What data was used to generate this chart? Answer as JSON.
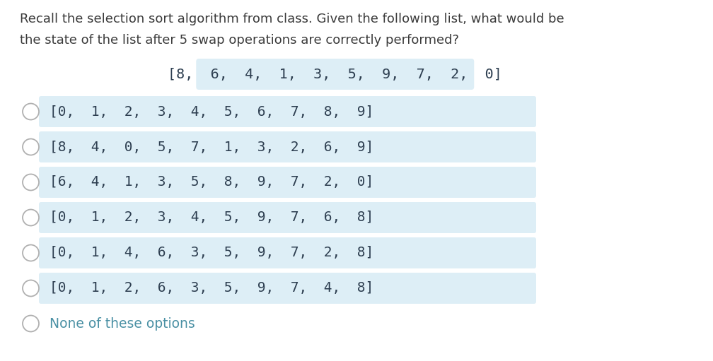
{
  "background_color": "#ffffff",
  "question_text_line1": "Recall the selection sort algorithm from class. Given the following list, what would be",
  "question_text_line2": "the state of the list after 5 swap operations are correctly performed?",
  "given_list": "[8,  6,  4,  1,  3,  5,  9,  7,  2,  0]",
  "options": [
    "[0,  1,  2,  3,  4,  5,  6,  7,  8,  9]",
    "[8,  4,  0,  5,  7,  1,  3,  2,  6,  9]",
    "[6,  4,  1,  3,  5,  8,  9,  7,  2,  0]",
    "[0,  1,  2,  3,  4,  5,  9,  7,  6,  8]",
    "[0,  1,  4,  6,  3,  5,  9,  7,  2,  8]",
    "[0,  1,  2,  6,  3,  5,  9,  7,  4,  8]",
    "None of these options"
  ],
  "option_bg_color": "#ddeef6",
  "question_font_color": "#3a3a3a",
  "mono_font_color": "#2d3e50",
  "none_font_color": "#4a90a4",
  "question_fontsize": 13.0,
  "given_list_fontsize": 14.5,
  "option_fontsize": 14.0,
  "none_fontsize": 13.5,
  "circle_edge_color": "#b0b0b0",
  "fig_width": 10.08,
  "fig_height": 5.11,
  "dpi": 100
}
